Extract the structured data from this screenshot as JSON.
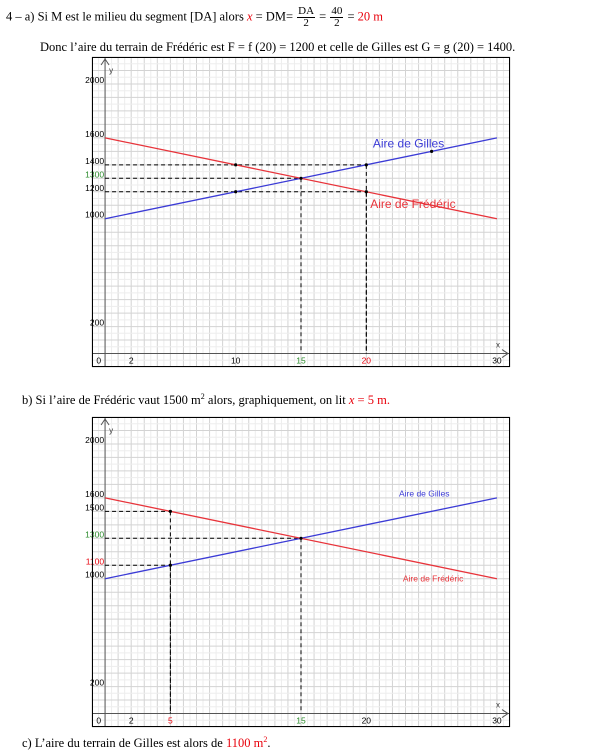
{
  "text": {
    "line1_prefix": "4 – a) Si M est le milieu du segment [DA] alors ",
    "line1_x": "x",
    "line1_eq": " = DM= ",
    "frac1_num": "DA",
    "frac1_den": "2",
    "eq2": " = ",
    "frac2_num": "40",
    "frac2_den": "2",
    "eq3": " = ",
    "line1_result": "20 m",
    "line2": "Donc l’aire du terrain de Frédéric est F = f (20) = 1200  et celle de Gilles est G = g (20) = 1400.",
    "lineb_prefix": "b) Si l’aire de Frédéric vaut 1500 m",
    "lineb_sup": "2",
    "lineb_mid": " alors, graphiquement, on lit ",
    "lineb_x": "x",
    "lineb_result": " = 5 m.",
    "linec_prefix": "c) L’aire du terrain de Gilles est alors de ",
    "linec_result": "1100 m",
    "linec_sup": "2",
    "linec_suffix": "."
  },
  "colors": {
    "gilles": "#3b3bd6",
    "frederic": "#e8333a",
    "green": "#2a8a2a",
    "red_text": "#e8000b"
  },
  "chart_data": [
    {
      "type": "line",
      "xlim": [
        -1,
        31
      ],
      "ylim": [
        -100,
        2200
      ],
      "grid": true,
      "series": [
        {
          "name": "Aire de Gilles",
          "x": [
            0,
            30
          ],
          "y": [
            1000,
            1600
          ]
        },
        {
          "name": "Aire de Frédéric",
          "x": [
            0,
            30
          ],
          "y": [
            1600,
            1000
          ]
        }
      ],
      "x_ticks": [
        {
          "value": 0,
          "label": "0",
          "color": "#000"
        },
        {
          "value": 2,
          "label": "2",
          "color": "#000"
        },
        {
          "value": 10,
          "label": "10",
          "color": "#000"
        },
        {
          "value": 15,
          "label": "15",
          "color": "#2a8a2a"
        },
        {
          "value": 20,
          "label": "20",
          "color": "#e8000b"
        },
        {
          "value": 30,
          "label": "30",
          "color": "#000"
        }
      ],
      "y_ticks": [
        {
          "value": 2000,
          "label": "2000",
          "color": "#000"
        },
        {
          "value": 1600,
          "label": "1600",
          "color": "#000"
        },
        {
          "value": 1400,
          "label": "1400",
          "color": "#000"
        },
        {
          "value": 1300,
          "label": "1300",
          "color": "#2a8a2a"
        },
        {
          "value": 1200,
          "label": "1200",
          "color": "#000"
        },
        {
          "value": 1000,
          "label": "1000",
          "color": "#000"
        },
        {
          "value": 200,
          "label": "200",
          "color": "#000"
        }
      ],
      "guides": [
        {
          "x": 20,
          "y": 1400
        },
        {
          "x": 15,
          "y": 1300
        },
        {
          "x": 20,
          "y": 1200
        }
      ],
      "points": [
        {
          "x": 10,
          "y": 1400
        },
        {
          "x": 10,
          "y": 1200
        },
        {
          "x": 15,
          "y": 1300
        },
        {
          "x": 20,
          "y": 1400
        },
        {
          "x": 20,
          "y": 1200
        },
        {
          "x": 25,
          "y": 1500
        }
      ],
      "xlabel": "x",
      "ylabel": "y",
      "annotations": [
        {
          "text": "Aire de Gilles",
          "color": "#3b3bd6"
        },
        {
          "text": "Aire de Frédéric",
          "color": "#e8333a"
        }
      ]
    },
    {
      "type": "line",
      "xlim": [
        -1,
        31
      ],
      "ylim": [
        -100,
        2200
      ],
      "grid": true,
      "series": [
        {
          "name": "Aire de Gilles",
          "x": [
            0,
            30
          ],
          "y": [
            1000,
            1600
          ]
        },
        {
          "name": "Aire de Frédéric",
          "x": [
            0,
            30
          ],
          "y": [
            1600,
            1000
          ]
        }
      ],
      "x_ticks": [
        {
          "value": 0,
          "label": "0",
          "color": "#000"
        },
        {
          "value": 2,
          "label": "2",
          "color": "#000"
        },
        {
          "value": 5,
          "label": "5",
          "color": "#e8000b"
        },
        {
          "value": 15,
          "label": "15",
          "color": "#2a8a2a"
        },
        {
          "value": 20,
          "label": "20",
          "color": "#000"
        },
        {
          "value": 30,
          "label": "30",
          "color": "#000"
        }
      ],
      "y_ticks": [
        {
          "value": 2000,
          "label": "2000",
          "color": "#000"
        },
        {
          "value": 1600,
          "label": "1600",
          "color": "#000"
        },
        {
          "value": 1500,
          "label": "1500",
          "color": "#000"
        },
        {
          "value": 1300,
          "label": "1300",
          "color": "#2a8a2a"
        },
        {
          "value": 1100,
          "label": "1100",
          "color": "#e8000b"
        },
        {
          "value": 1000,
          "label": "1000",
          "color": "#000"
        },
        {
          "value": 200,
          "label": "200",
          "color": "#000"
        }
      ],
      "guides": [
        {
          "x": 5,
          "y": 1500
        },
        {
          "x": 15,
          "y": 1300
        },
        {
          "x": 5,
          "y": 1100
        }
      ],
      "points": [
        {
          "x": 5,
          "y": 1500
        },
        {
          "x": 5,
          "y": 1100
        },
        {
          "x": 15,
          "y": 1300
        }
      ],
      "xlabel": "x",
      "ylabel": "y",
      "annotations": [
        {
          "text": "Aire de Gilles",
          "color": "#3b3bd6"
        },
        {
          "text": "Aire de Frédéric",
          "color": "#e8333a"
        }
      ]
    }
  ]
}
